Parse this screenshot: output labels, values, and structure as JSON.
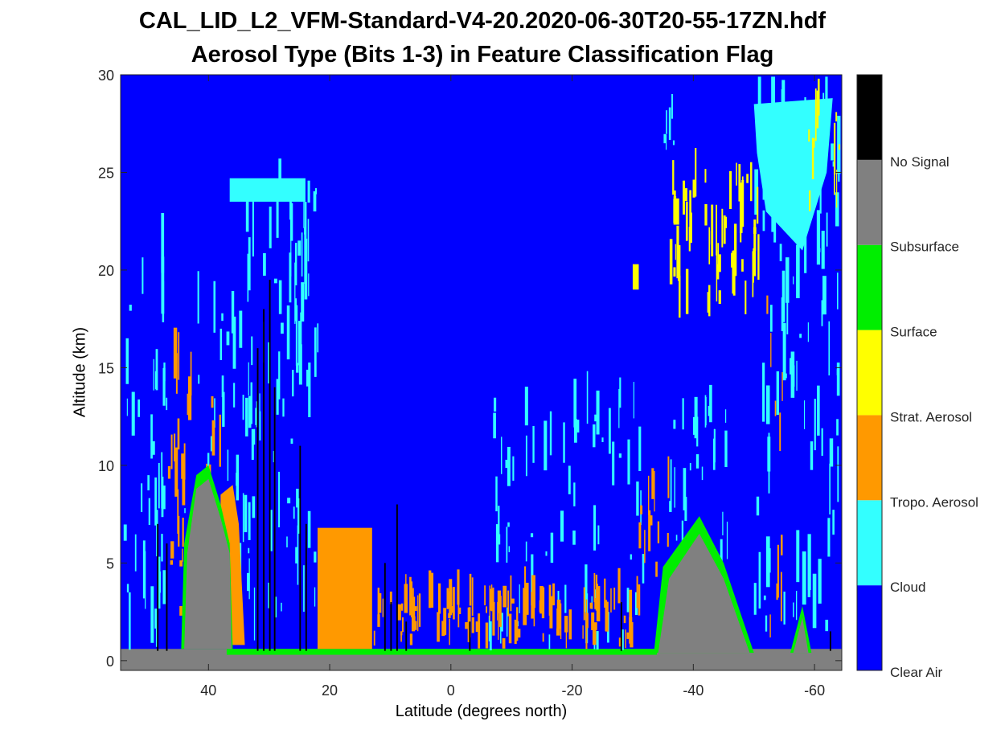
{
  "title": "CAL_LID_L2_VFM-Standard-V4-20.2020-06-30T20-55-17ZN.hdf",
  "subtitle": "Aerosol Type  (Bits 1-3) in Feature Classification Flag",
  "chart_data": {
    "type": "heatmap",
    "title": "CAL_LID_L2_VFM-Standard-V4-20.2020-06-30T20-55-17ZN.hdf",
    "subtitle": "Aerosol Type  (Bits 1-3) in Feature Classification Flag",
    "xlabel": "Latitude (degrees north)",
    "ylabel": "Altitude (km)",
    "xlim": [
      54.5,
      -64.5
    ],
    "ylim": [
      -0.5,
      30
    ],
    "x_reversed": true,
    "xticks": [
      40,
      20,
      0,
      -20,
      -40,
      -60
    ],
    "xtick_labels": [
      "40",
      "20",
      "0",
      "-20",
      "-40",
      "-60"
    ],
    "yticks": [
      0,
      5,
      10,
      15,
      20,
      25,
      30
    ],
    "ytick_labels": [
      "0",
      "5",
      "10",
      "15",
      "20",
      "25",
      "30"
    ],
    "colorbar": {
      "placement": "right",
      "categories": [
        "Clear Air",
        "Cloud",
        "Tropo. Aerosol",
        "Strat. Aerosol",
        "Surface",
        "Subsurface",
        "No Signal"
      ],
      "colors": [
        "#0000ff",
        "#33ffff",
        "#ff9900",
        "#ffff00",
        "#00ee00",
        "#808080",
        "#000000"
      ]
    },
    "features": [
      {
        "class": "Subsurface",
        "lat_range": [
          44,
          34
        ],
        "top_km": 9.5
      },
      {
        "class": "Subsurface",
        "lat_range": [
          -34,
          -50
        ],
        "top_km": 6.5
      },
      {
        "class": "Surface",
        "lat_range": [
          -34,
          -50
        ],
        "top_km": 7.2
      },
      {
        "class": "No Signal",
        "lat_range": [
          32,
          28
        ],
        "top_km": 16
      },
      {
        "class": "Tropo. Aerosol",
        "lat_range": [
          22,
          13
        ],
        "top_km": 7
      },
      {
        "class": "Tropo. Aerosol",
        "lat_range": [
          13,
          -30
        ],
        "top_km": 4
      },
      {
        "class": "Strat. Aerosol",
        "lat_range": [
          -36,
          -52
        ],
        "top_km": 25
      },
      {
        "class": "Cloud",
        "lat_range": [
          -51,
          -64
        ],
        "top_km": 28.5
      },
      {
        "class": "Cloud",
        "lat_range": [
          36,
          24
        ],
        "top_km": 25
      }
    ]
  }
}
